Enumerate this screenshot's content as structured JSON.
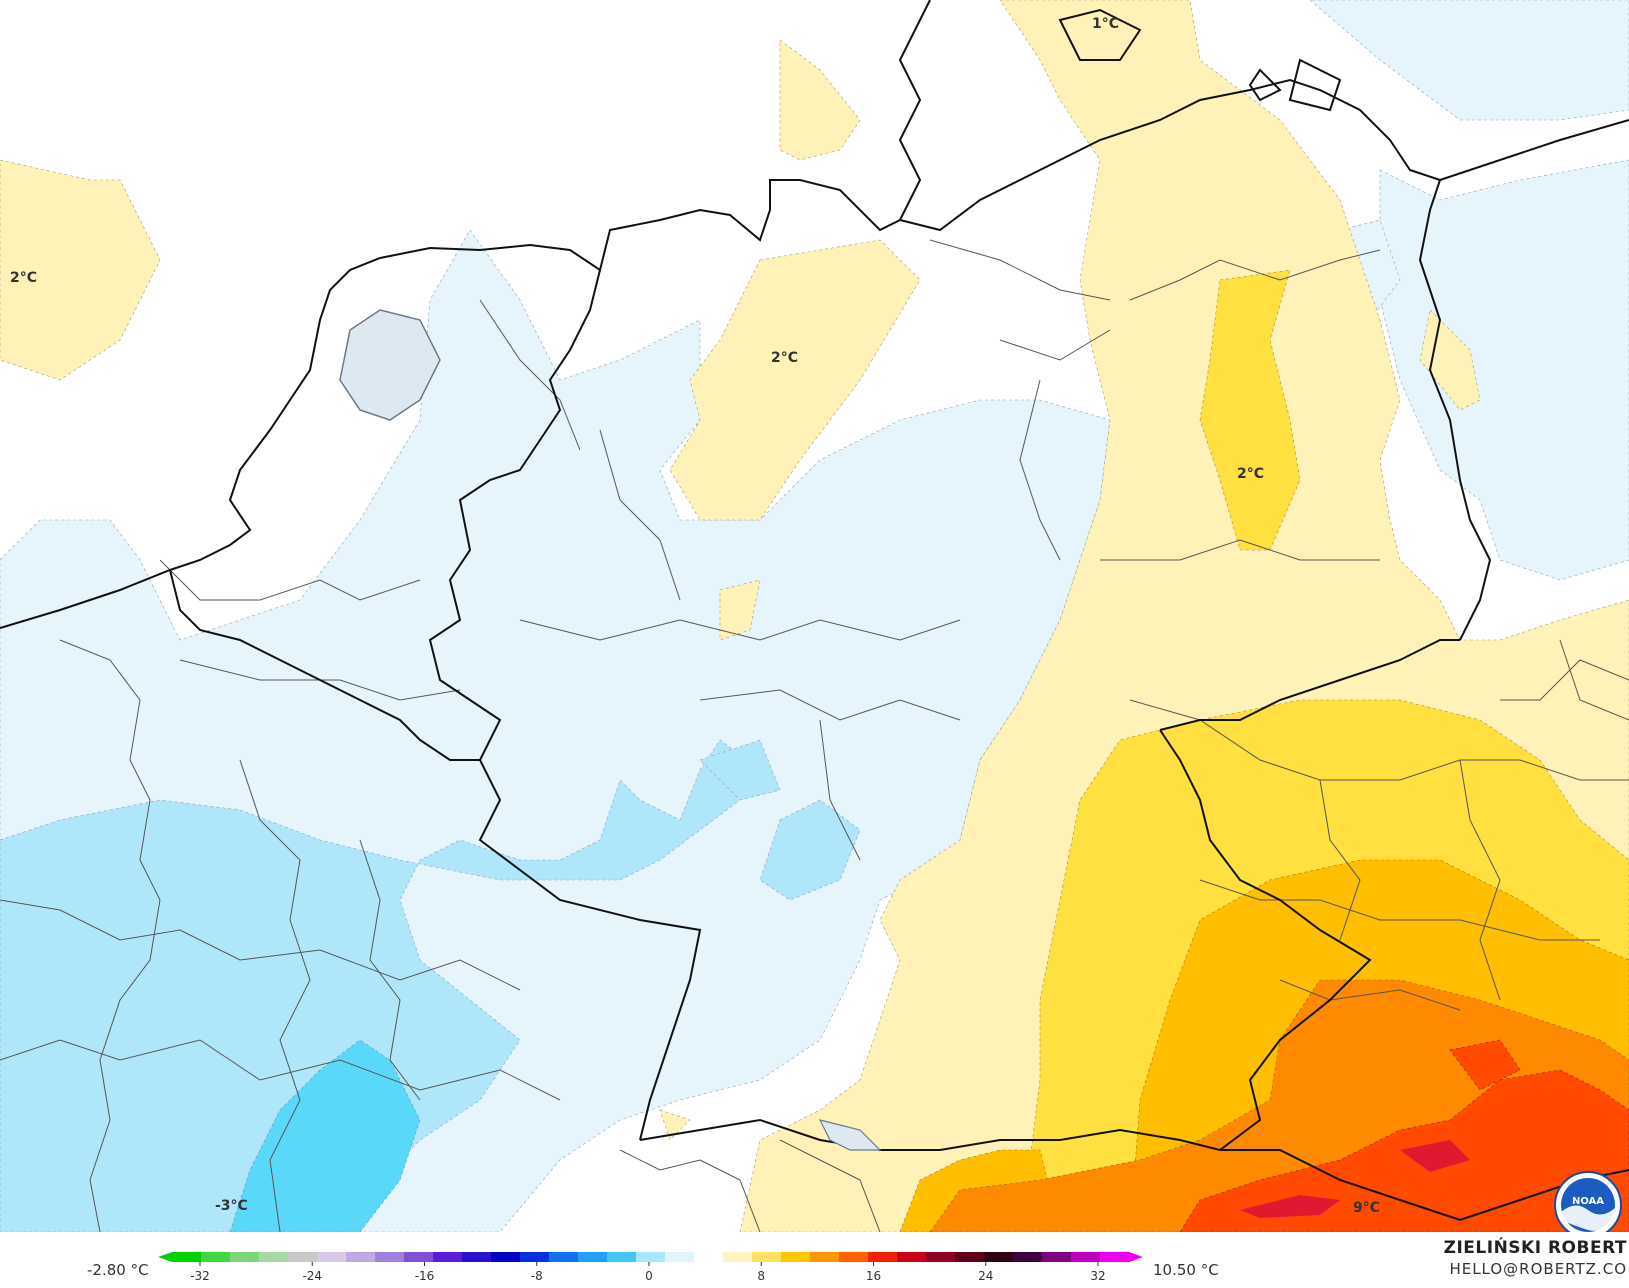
{
  "map": {
    "labels": [
      {
        "id": "label-2c-north-sea",
        "text": "2°C"
      },
      {
        "id": "label-1c-denmark",
        "text": "1°C"
      },
      {
        "id": "label-2c-lower-saxony",
        "text": "2°C"
      },
      {
        "id": "label-2c-berlin",
        "text": "2°C"
      },
      {
        "id": "label-minus3c-france",
        "text": "-3°C"
      },
      {
        "id": "label-9c-alps",
        "text": "9°C"
      }
    ]
  },
  "legend": {
    "range_min": "-2.80 °C",
    "range_max": "10.50 °C",
    "ticks": [
      "-32",
      "-24",
      "-16",
      "-8",
      "0",
      "8",
      "16",
      "24",
      "32"
    ],
    "colors": [
      "#00d400",
      "#40d840",
      "#7cd67c",
      "#a8d8a8",
      "#c8c8c8",
      "#d8c8e8",
      "#c0a8e8",
      "#a080e0",
      "#8050d8",
      "#5a1ed8",
      "#2a10d0",
      "#0000c8",
      "#0030e0",
      "#1070f0",
      "#20a0f8",
      "#40c8fc",
      "#a8e8fc",
      "#e0f4fc",
      "#ffffff",
      "#fff4c0",
      "#ffe060",
      "#ffc800",
      "#ff9800",
      "#ff6000",
      "#f02000",
      "#c80018",
      "#900020",
      "#600018",
      "#300010",
      "#400040",
      "#800080",
      "#c000c0",
      "#f000f0"
    ]
  },
  "author": {
    "name": "ZIELIŃSKI ROBERT",
    "email": "HELLO@ROBERTZ.CO"
  },
  "logo": {
    "text": "NOAA"
  }
}
